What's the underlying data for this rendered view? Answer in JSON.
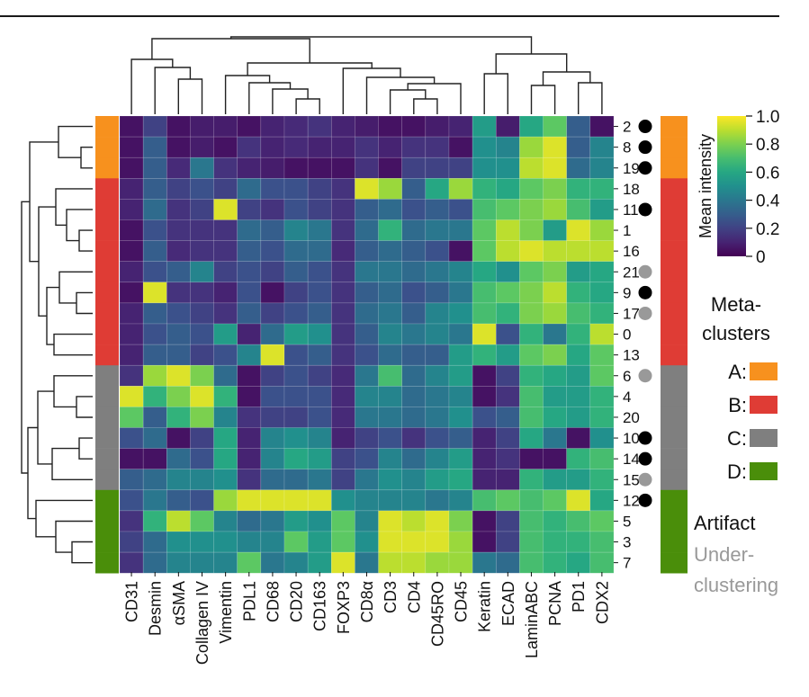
{
  "chart_data": {
    "type": "heatmap",
    "title": "",
    "columns": [
      "CD31",
      "Desmin",
      "αSMA",
      "Collagen IV",
      "Vimentin",
      "PDL1",
      "CD68",
      "CD20",
      "CD163",
      "FOXP3",
      "CD8α",
      "CD3",
      "CD4",
      "CD45RO",
      "CD45",
      "Keratin",
      "ECAD",
      "LaminABC",
      "PCNA",
      "PD1",
      "CDX2"
    ],
    "rows": [
      "2",
      "8",
      "19",
      "18",
      "11",
      "1",
      "16",
      "21",
      "9",
      "17",
      "0",
      "13",
      "6",
      "4",
      "20",
      "10",
      "14",
      "15",
      "12",
      "5",
      "3",
      "7"
    ],
    "row_metaclusters": [
      "A",
      "A",
      "A",
      "B",
      "B",
      "B",
      "B",
      "B",
      "B",
      "B",
      "B",
      "B",
      "C",
      "C",
      "C",
      "C",
      "C",
      "C",
      "D",
      "D",
      "D",
      "D"
    ],
    "row_markers": [
      "artifact",
      "artifact",
      "artifact",
      "",
      "artifact",
      "",
      "",
      "underclustering",
      "artifact",
      "underclustering",
      "",
      "",
      "underclustering",
      "",
      "",
      "artifact",
      "artifact",
      "underclustering",
      "artifact",
      "",
      "",
      ""
    ],
    "values": [
      [
        0.05,
        0.2,
        0.05,
        0.08,
        0.08,
        0.05,
        0.1,
        0.12,
        0.15,
        0.1,
        0.08,
        0.05,
        0.05,
        0.08,
        0.1,
        0.55,
        0.08,
        0.6,
        0.75,
        0.3,
        0.05
      ],
      [
        0.05,
        0.3,
        0.05,
        0.08,
        0.05,
        0.15,
        0.1,
        0.12,
        0.1,
        0.1,
        0.15,
        0.1,
        0.15,
        0.15,
        0.05,
        0.5,
        0.45,
        0.85,
        0.95,
        0.3,
        0.45
      ],
      [
        0.05,
        0.3,
        0.12,
        0.4,
        0.15,
        0.1,
        0.08,
        0.05,
        0.05,
        0.05,
        0.15,
        0.05,
        0.2,
        0.2,
        0.2,
        0.5,
        0.5,
        0.9,
        0.95,
        0.35,
        0.45
      ],
      [
        0.1,
        0.3,
        0.2,
        0.25,
        0.2,
        0.35,
        0.25,
        0.25,
        0.2,
        0.15,
        0.95,
        0.85,
        0.3,
        0.6,
        0.85,
        0.65,
        0.6,
        0.75,
        0.8,
        0.65,
        0.65
      ],
      [
        0.1,
        0.35,
        0.15,
        0.2,
        0.95,
        0.2,
        0.15,
        0.25,
        0.2,
        0.15,
        0.3,
        0.35,
        0.25,
        0.3,
        0.25,
        0.7,
        0.75,
        0.8,
        0.85,
        0.7,
        0.55
      ],
      [
        0.05,
        0.25,
        0.15,
        0.15,
        0.15,
        0.35,
        0.3,
        0.45,
        0.4,
        0.15,
        0.35,
        0.65,
        0.35,
        0.4,
        0.4,
        0.75,
        0.9,
        0.8,
        0.55,
        0.95,
        0.85
      ],
      [
        0.05,
        0.3,
        0.12,
        0.15,
        0.15,
        0.3,
        0.25,
        0.35,
        0.35,
        0.12,
        0.3,
        0.35,
        0.3,
        0.25,
        0.05,
        0.75,
        0.9,
        0.95,
        0.9,
        0.9,
        0.9
      ],
      [
        0.1,
        0.25,
        0.3,
        0.45,
        0.2,
        0.25,
        0.2,
        0.3,
        0.25,
        0.15,
        0.4,
        0.4,
        0.35,
        0.4,
        0.45,
        0.6,
        0.5,
        0.75,
        0.8,
        0.55,
        0.6
      ],
      [
        0.05,
        0.95,
        0.15,
        0.15,
        0.1,
        0.25,
        0.05,
        0.2,
        0.25,
        0.15,
        0.3,
        0.35,
        0.25,
        0.3,
        0.4,
        0.7,
        0.75,
        0.8,
        0.9,
        0.65,
        0.6
      ],
      [
        0.1,
        0.3,
        0.25,
        0.2,
        0.15,
        0.3,
        0.2,
        0.25,
        0.3,
        0.15,
        0.35,
        0.4,
        0.3,
        0.45,
        0.5,
        0.7,
        0.65,
        0.8,
        0.85,
        0.7,
        0.65
      ],
      [
        0.1,
        0.25,
        0.3,
        0.25,
        0.55,
        0.1,
        0.35,
        0.55,
        0.5,
        0.15,
        0.3,
        0.45,
        0.4,
        0.45,
        0.4,
        0.95,
        0.25,
        0.65,
        0.4,
        0.65,
        0.9
      ],
      [
        0.1,
        0.3,
        0.3,
        0.2,
        0.25,
        0.45,
        0.95,
        0.25,
        0.3,
        0.15,
        0.25,
        0.35,
        0.3,
        0.3,
        0.55,
        0.65,
        0.55,
        0.75,
        0.8,
        0.6,
        0.75
      ],
      [
        0.15,
        0.85,
        0.95,
        0.8,
        0.35,
        0.05,
        0.2,
        0.25,
        0.2,
        0.12,
        0.4,
        0.7,
        0.35,
        0.45,
        0.55,
        0.05,
        0.2,
        0.65,
        0.6,
        0.55,
        0.75
      ],
      [
        0.95,
        0.65,
        0.8,
        0.95,
        0.65,
        0.05,
        0.25,
        0.25,
        0.25,
        0.12,
        0.45,
        0.45,
        0.35,
        0.4,
        0.45,
        0.05,
        0.15,
        0.7,
        0.55,
        0.55,
        0.65
      ],
      [
        0.75,
        0.3,
        0.65,
        0.8,
        0.45,
        0.15,
        0.2,
        0.2,
        0.25,
        0.12,
        0.4,
        0.4,
        0.35,
        0.4,
        0.5,
        0.25,
        0.3,
        0.7,
        0.6,
        0.55,
        0.65
      ],
      [
        0.25,
        0.35,
        0.05,
        0.2,
        0.6,
        0.1,
        0.45,
        0.5,
        0.45,
        0.1,
        0.2,
        0.25,
        0.15,
        0.25,
        0.3,
        0.1,
        0.2,
        0.6,
        0.4,
        0.05,
        0.5
      ],
      [
        0.05,
        0.05,
        0.35,
        0.25,
        0.6,
        0.1,
        0.45,
        0.6,
        0.55,
        0.2,
        0.25,
        0.45,
        0.35,
        0.45,
        0.55,
        0.1,
        0.15,
        0.05,
        0.05,
        0.65,
        0.7
      ],
      [
        0.3,
        0.35,
        0.45,
        0.45,
        0.5,
        0.15,
        0.35,
        0.35,
        0.4,
        0.2,
        0.4,
        0.5,
        0.45,
        0.55,
        0.6,
        0.1,
        0.1,
        0.65,
        0.55,
        0.55,
        0.65
      ],
      [
        0.25,
        0.4,
        0.3,
        0.25,
        0.85,
        0.95,
        0.95,
        0.95,
        0.95,
        0.5,
        0.45,
        0.45,
        0.45,
        0.4,
        0.45,
        0.7,
        0.75,
        0.7,
        0.75,
        0.95,
        0.6
      ],
      [
        0.15,
        0.65,
        0.9,
        0.75,
        0.45,
        0.35,
        0.4,
        0.55,
        0.5,
        0.75,
        0.45,
        0.95,
        0.9,
        0.95,
        0.8,
        0.05,
        0.2,
        0.7,
        0.65,
        0.7,
        0.75
      ],
      [
        0.2,
        0.35,
        0.5,
        0.5,
        0.5,
        0.45,
        0.45,
        0.75,
        0.55,
        0.75,
        0.5,
        0.95,
        0.95,
        0.95,
        0.85,
        0.05,
        0.2,
        0.7,
        0.65,
        0.65,
        0.7
      ],
      [
        0.15,
        0.35,
        0.45,
        0.45,
        0.45,
        0.75,
        0.4,
        0.45,
        0.55,
        0.95,
        0.4,
        0.9,
        0.9,
        0.85,
        0.85,
        0.4,
        0.35,
        0.7,
        0.65,
        0.6,
        0.7
      ]
    ],
    "colorbar": {
      "label": "Mean intensity",
      "range": [
        0,
        1
      ],
      "ticks": [
        "1.0",
        "0.8",
        "0.6",
        "0.4",
        "0.2",
        "0"
      ],
      "colormap": "viridis"
    },
    "legend": {
      "title_line1": "Meta-",
      "title_line2": "clusters",
      "items": [
        {
          "label": "A:",
          "color": "#f7911e"
        },
        {
          "label": "B:",
          "color": "#df3c35"
        },
        {
          "label": "C:",
          "color": "#7f7f7f"
        },
        {
          "label": "D:",
          "color": "#4a8e0a"
        }
      ],
      "marker_artifact": "Artifact",
      "marker_under_line1": "Under-",
      "marker_under_line2": "clustering",
      "marker_colors": {
        "artifact": "#000000",
        "underclustering": "#999999"
      }
    }
  }
}
